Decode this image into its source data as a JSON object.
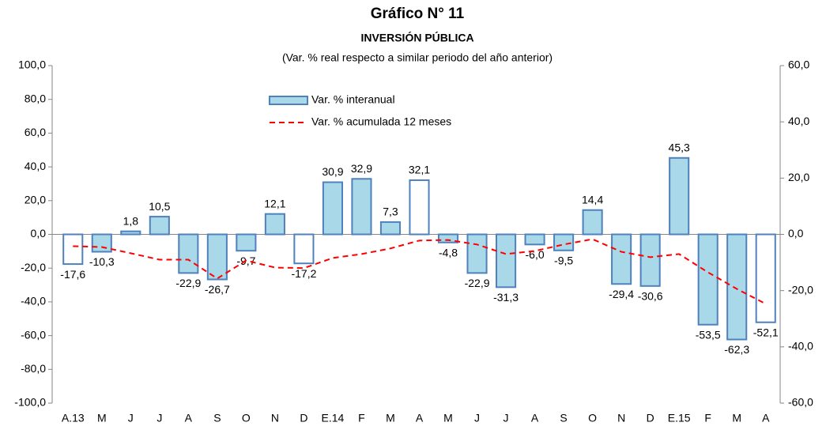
{
  "chart_data": {
    "type": "bar",
    "title": "Gráfico N° 11",
    "subtitle": "INVERSIÓN PÚBLICA",
    "note": "(Var. % real respecto a similar periodo del año anterior)",
    "categories": [
      "A.13",
      "M",
      "J",
      "J",
      "A",
      "S",
      "O",
      "N",
      "D",
      "E.14",
      "F",
      "M",
      "A",
      "M",
      "J",
      "J",
      "A",
      "S",
      "O",
      "N",
      "D",
      "E.15",
      "F",
      "M",
      "A"
    ],
    "series": [
      {
        "name": "Var. % interanual",
        "type": "bar",
        "color": "#a9d8e8",
        "edge_color": "#4f81bd",
        "point_colors": [
          "#ffffff",
          "#a9d8e8",
          "#a9d8e8",
          "#a9d8e8",
          "#a9d8e8",
          "#a9d8e8",
          "#a9d8e8",
          "#a9d8e8",
          "#ffffff",
          "#a9d8e8",
          "#a9d8e8",
          "#a9d8e8",
          "#ffffff",
          "#a9d8e8",
          "#a9d8e8",
          "#a9d8e8",
          "#a9d8e8",
          "#a9d8e8",
          "#a9d8e8",
          "#a9d8e8",
          "#a9d8e8",
          "#a9d8e8",
          "#a9d8e8",
          "#a9d8e8",
          "#ffffff"
        ],
        "values": [
          -17.6,
          -10.3,
          1.8,
          10.5,
          -22.9,
          -26.7,
          -9.7,
          12.1,
          -17.2,
          30.9,
          32.9,
          7.3,
          32.1,
          -4.8,
          -22.9,
          -31.3,
          -6.0,
          -9.5,
          14.4,
          -29.4,
          -30.6,
          45.3,
          -53.5,
          -62.3,
          -52.1
        ],
        "value_labels": [
          "-17,6",
          "-10,3",
          "1,8",
          "10,5",
          "-22,9",
          "-26,7",
          "-9,7",
          "12,1",
          "-17,2",
          "30,9",
          "32,9",
          "7,3",
          "32,1",
          "-4,8",
          "-22,9",
          "-31,3",
          "-6,0",
          "-9,5",
          "14,4",
          "-29,4",
          "-30,6",
          "45,3",
          "-53,5",
          "-62,3",
          "-52,1"
        ]
      },
      {
        "name": "Var. % acumulada 12 meses",
        "type": "line",
        "axis": "y2",
        "color": "#ff0000",
        "dashed": true,
        "values": [
          -4.2,
          -4.5,
          -6.7,
          -9,
          -9,
          -15.7,
          -9.3,
          -11.8,
          -12,
          -8.4,
          -7,
          -5,
          -2.2,
          -2,
          -3.6,
          -7,
          -5.9,
          -3.6,
          -1.7,
          -6.2,
          -8.1,
          -7,
          -13.5,
          -19.4,
          -24.7
        ]
      }
    ],
    "ylim": [
      -100,
      100
    ],
    "yticks": [
      {
        "value": -100,
        "label": "-100,0"
      },
      {
        "value": -80,
        "label": "-80,0"
      },
      {
        "value": -60,
        "label": "-60,0"
      },
      {
        "value": -40,
        "label": "-40,0"
      },
      {
        "value": -20,
        "label": "-20,0"
      },
      {
        "value": 0,
        "label": "0,0"
      },
      {
        "value": 20,
        "label": "20,0"
      },
      {
        "value": 40,
        "label": "40,0"
      },
      {
        "value": 60,
        "label": "60,0"
      },
      {
        "value": 80,
        "label": "80,0"
      },
      {
        "value": 100,
        "label": "100,0"
      }
    ],
    "y2lim": [
      -60,
      60
    ],
    "y2ticks": [
      {
        "value": -60,
        "label": "-60,0"
      },
      {
        "value": -40,
        "label": "-40,0"
      },
      {
        "value": -20,
        "label": "-20,0"
      },
      {
        "value": 0,
        "label": "0,0"
      },
      {
        "value": 20,
        "label": "20,0"
      },
      {
        "value": 40,
        "label": "40,0"
      },
      {
        "value": 60,
        "label": "60,0"
      }
    ],
    "grid": false
  }
}
